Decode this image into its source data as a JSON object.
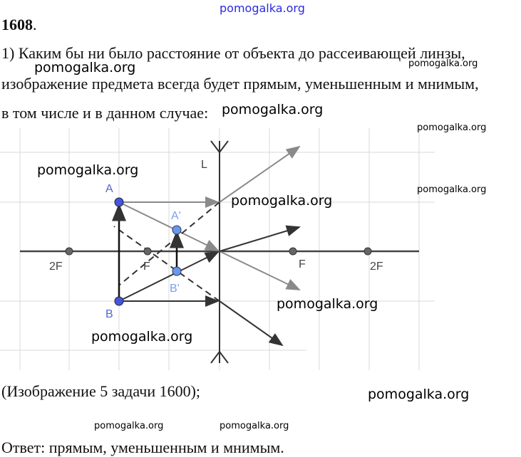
{
  "header_watermark": "pomogalka.org",
  "problem_number": "1608",
  "problem_dot": ".",
  "lines": [
    "1) Каким бы ни было расстояние от объекта до рассеивающей линзы,",
    "изображение предмета всегда будет прямым, уменьшенным и мнимым,",
    "в том числе и в данном случае:"
  ],
  "diagram": {
    "lens_label": "L",
    "points": {
      "A": "A",
      "B": "B",
      "A_img": "A'",
      "B_img": "B'"
    },
    "focus_labels": {
      "left_2f": "2F",
      "left_f": "F",
      "right_f": "F",
      "right_2f": "2F"
    }
  },
  "caption": "(Изображение 5 задачи 1600);",
  "answer": "Ответ:  прямым, уменьшенным и мнимым.",
  "watermark": "pomogalka.org",
  "colors": {
    "header_watermark": "#2a2ae0",
    "point": "#4455dd",
    "image_point": "#6699ee",
    "ray_gray": "#8a8a8a",
    "ray_dark": "#333333",
    "grid": "#d8d8d8"
  }
}
